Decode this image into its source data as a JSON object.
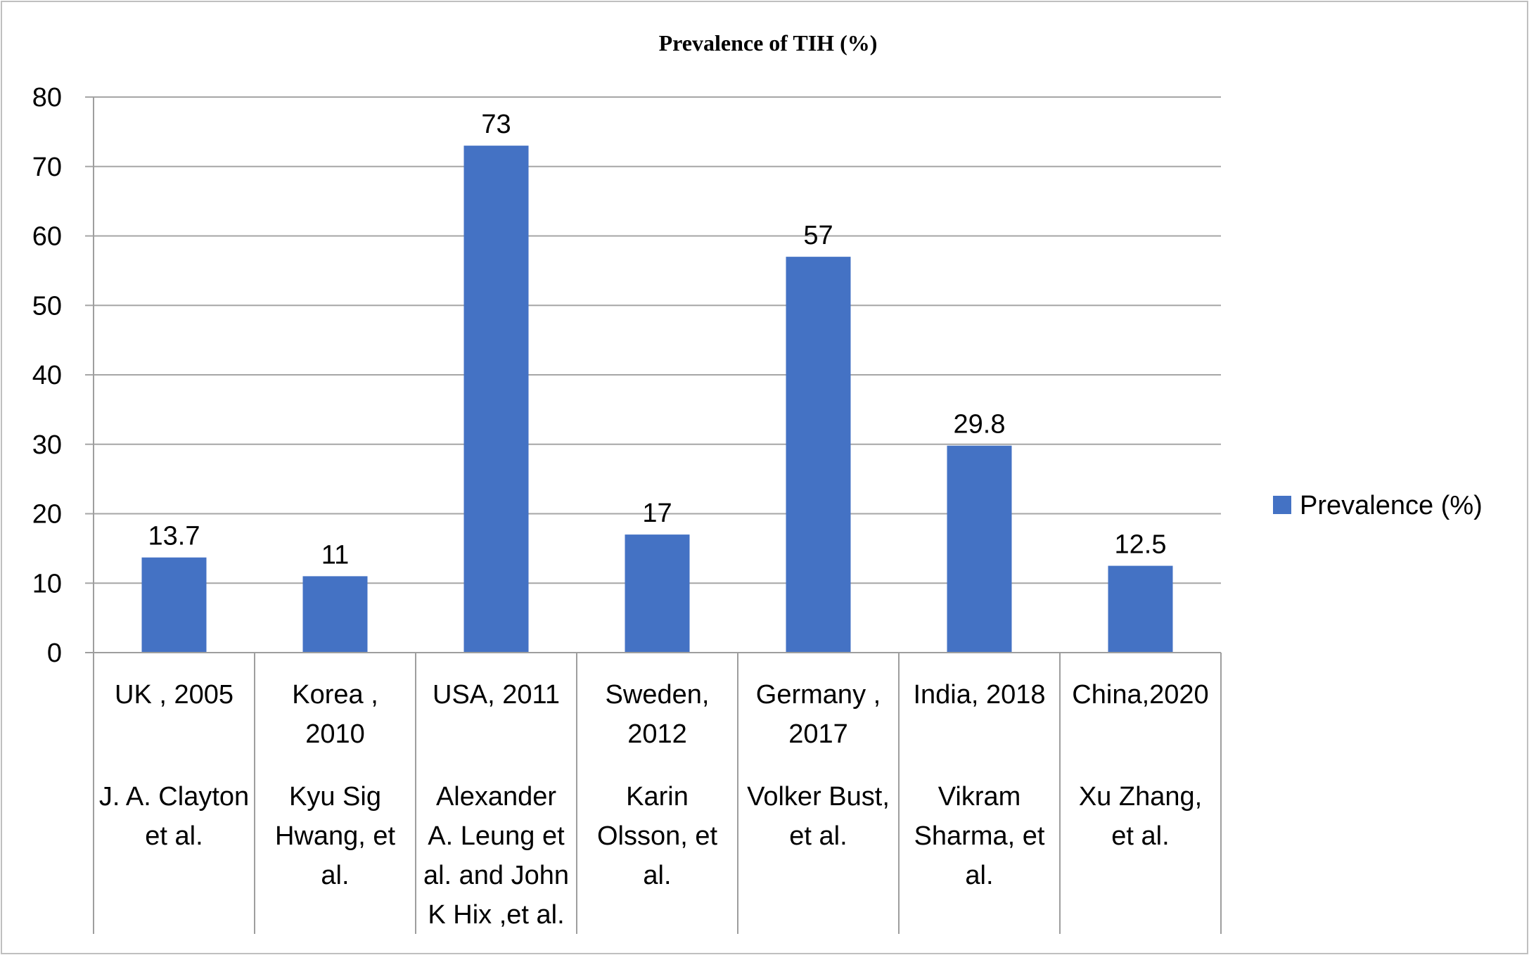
{
  "colors": {
    "bar": "#4472c4",
    "gridline": "#a6a6a6",
    "axis": "#9e9e9e",
    "frame": "#bfbfbf",
    "text": "#000000"
  },
  "chart_data": {
    "type": "bar",
    "title": "Prevalence of TIH (%)",
    "xlabel": "",
    "ylabel": "",
    "ylim": [
      0,
      80
    ],
    "yticks": [
      "0",
      "10",
      "20",
      "30",
      "40",
      "50",
      "60",
      "70",
      "80"
    ],
    "grid": true,
    "legend_position": "right",
    "categories": [
      {
        "lines": [
          "UK , 2005"
        ],
        "author_lines": [
          "J. A. Clayton",
          "et al."
        ]
      },
      {
        "lines": [
          "Korea ,",
          "2010"
        ],
        "author_lines": [
          "Kyu Sig",
          "Hwang, et",
          "al."
        ]
      },
      {
        "lines": [
          "USA, 2011"
        ],
        "author_lines": [
          "Alexander",
          "A. Leung et",
          "al. and John",
          "K Hix ,et al."
        ]
      },
      {
        "lines": [
          "Sweden,",
          "2012"
        ],
        "author_lines": [
          "Karin",
          "Olsson, et",
          "al."
        ]
      },
      {
        "lines": [
          "Germany ,",
          "2017"
        ],
        "author_lines": [
          "Volker Bust,",
          "et al."
        ]
      },
      {
        "lines": [
          "India, 2018"
        ],
        "author_lines": [
          "Vikram",
          "Sharma, et",
          "al."
        ]
      },
      {
        "lines": [
          "China,2020"
        ],
        "author_lines": [
          "Xu Zhang,",
          "et al."
        ]
      }
    ],
    "series": [
      {
        "name": "Prevalence (%)",
        "values": [
          13.7,
          11,
          73,
          17,
          57,
          29.8,
          12.5
        ],
        "labels": [
          "13.7",
          "11",
          "73",
          "17",
          "57",
          "29.8",
          "12.5"
        ]
      }
    ]
  }
}
